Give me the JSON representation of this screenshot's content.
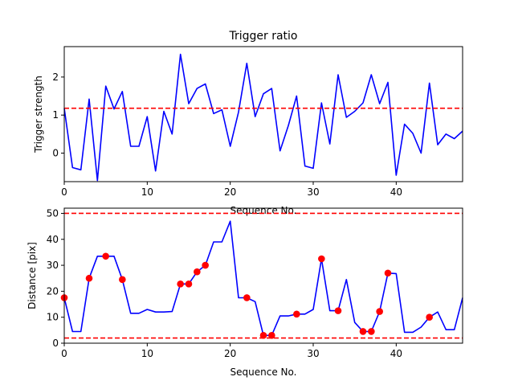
{
  "chart_data": [
    {
      "type": "line",
      "title": "Trigger ratio",
      "xlabel": "Sequence No.",
      "ylabel": "Trigger strength",
      "xlim": [
        0,
        48
      ],
      "ylim": [
        -0.75,
        2.8
      ],
      "xticks": [
        0,
        10,
        20,
        30,
        40
      ],
      "yticks": [
        0,
        1,
        2
      ],
      "grid": false,
      "series": [
        {
          "color": "#0000ff",
          "x": [
            0,
            1,
            2,
            3,
            4,
            5,
            6,
            7,
            8,
            9,
            10,
            11,
            12,
            13,
            14,
            15,
            16,
            17,
            18,
            19,
            20,
            21,
            22,
            23,
            24,
            25,
            26,
            27,
            28,
            29,
            30,
            31,
            32,
            33,
            34,
            35,
            36,
            37,
            38,
            39,
            40,
            41,
            42,
            43,
            44,
            45,
            46,
            47,
            48
          ],
          "values": [
            1.18,
            -0.38,
            -0.44,
            1.42,
            -0.72,
            1.76,
            1.16,
            1.62,
            0.18,
            0.18,
            0.96,
            -0.47,
            1.1,
            0.5,
            2.6,
            1.3,
            1.7,
            1.82,
            1.04,
            1.14,
            0.18,
            1.08,
            2.36,
            0.96,
            1.56,
            1.7,
            0.06,
            0.72,
            1.5,
            -0.34,
            -0.4,
            1.32,
            0.24,
            2.06,
            0.94,
            1.1,
            1.32,
            2.06,
            1.3,
            1.86,
            -0.58,
            0.76,
            0.52,
            0.0,
            1.84,
            0.22,
            0.5,
            0.38,
            0.58
          ]
        }
      ],
      "hlines": [
        {
          "y": 1.18,
          "color": "#ff0000",
          "style": "dashed"
        }
      ]
    },
    {
      "type": "line",
      "title": "",
      "xlabel": "Sequence No.",
      "ylabel": "Distance [pix]",
      "xlim": [
        0,
        48
      ],
      "ylim": [
        0,
        52
      ],
      "xticks": [
        0,
        10,
        20,
        30,
        40
      ],
      "yticks": [
        0,
        10,
        20,
        30,
        40,
        50
      ],
      "grid": false,
      "series": [
        {
          "color": "#0000ff",
          "x": [
            0,
            1,
            2,
            3,
            4,
            5,
            6,
            7,
            8,
            9,
            10,
            11,
            12,
            13,
            14,
            15,
            16,
            17,
            18,
            19,
            20,
            21,
            22,
            23,
            24,
            25,
            26,
            27,
            28,
            29,
            30,
            31,
            32,
            33,
            34,
            35,
            36,
            37,
            38,
            39,
            40,
            41,
            42,
            43,
            44,
            45,
            46,
            47,
            48
          ],
          "values": [
            17.5,
            4.5,
            4.5,
            25,
            33.5,
            33.5,
            33.5,
            24.5,
            11.5,
            11.5,
            13,
            12,
            12,
            12.2,
            22.8,
            22.8,
            27.5,
            30,
            39,
            39,
            47,
            17.5,
            17.5,
            16,
            3,
            3,
            10.5,
            10.5,
            11.2,
            11.2,
            13,
            32.5,
            12.5,
            12.5,
            24.5,
            8,
            4.5,
            4.5,
            12.2,
            27,
            26.8,
            4.2,
            4.2,
            6.2,
            10,
            12,
            5.2,
            5.2,
            17.5
          ]
        }
      ],
      "markers": {
        "color": "#ff0000",
        "x": [
          0,
          3,
          5,
          7,
          14,
          15,
          16,
          17,
          22,
          24,
          25,
          28,
          31,
          33,
          36,
          37,
          38,
          39,
          44
        ],
        "values": [
          17.5,
          25,
          33.5,
          24.5,
          22.8,
          22.8,
          27.5,
          30,
          17.5,
          3,
          3,
          11.2,
          32.5,
          12.5,
          4.5,
          4.5,
          12.2,
          27,
          10
        ]
      },
      "hlines": [
        {
          "y": 50,
          "color": "#ff0000",
          "style": "dashed"
        },
        {
          "y": 2,
          "color": "#ff0000",
          "style": "dashed"
        }
      ]
    }
  ]
}
